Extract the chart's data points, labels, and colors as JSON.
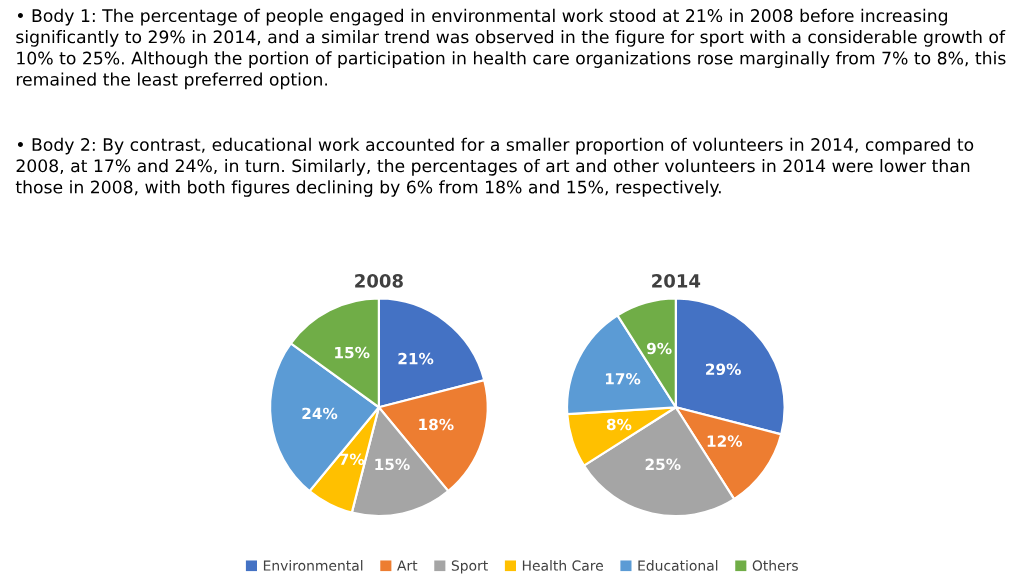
{
  "chart_data": [
    {
      "type": "pie",
      "title": "2008",
      "categories": [
        "Environmental",
        "Art",
        "Sport",
        "Health Care",
        "Educational",
        "Others"
      ],
      "values": [
        21,
        18,
        15,
        7,
        24,
        15
      ],
      "value_labels": [
        "21%",
        "18%",
        "15%",
        "7%",
        "24%",
        "15%"
      ],
      "colors": [
        "#4472c4",
        "#ed7d31",
        "#a5a5a5",
        "#ffc000",
        "#5b9bd5",
        "#70ad47"
      ],
      "legend": "bottom",
      "annotations": [
        "• Body 1: The percentage of people engaged in environmental work stood at 21% in 2008 before increasing significantly to 29% in 2014, and a similar trend was observed in the figure for sport with a considerable growth of 10% to 25%. Although the portion of participation in health care organizations rose marginally from 7% to 8%, this remained the least preferred option.",
        "• Body 2: By contrast, educational work accounted for a smaller proportion of volunteers in 2014, compared to 2008, at 17% and 24%, in turn. Similarly, the percentages of art and other volunteers in 2014 were lower than those in 2008, with both figures declining by 6% from 18% and 15%, respectively."
      ]
    },
    {
      "type": "pie",
      "title": "2014",
      "values": [
        29,
        12,
        25,
        8,
        17,
        9
      ],
      "value_labels": [
        "29%",
        "12%",
        "25%",
        "8%",
        "17%",
        "9%"
      ],
      "colors": [
        "#4472c4",
        "#ed7d31",
        "#a5a5a5",
        "#ffc000",
        "#5b9bd5",
        "#70ad47"
      ]
    }
  ]
}
